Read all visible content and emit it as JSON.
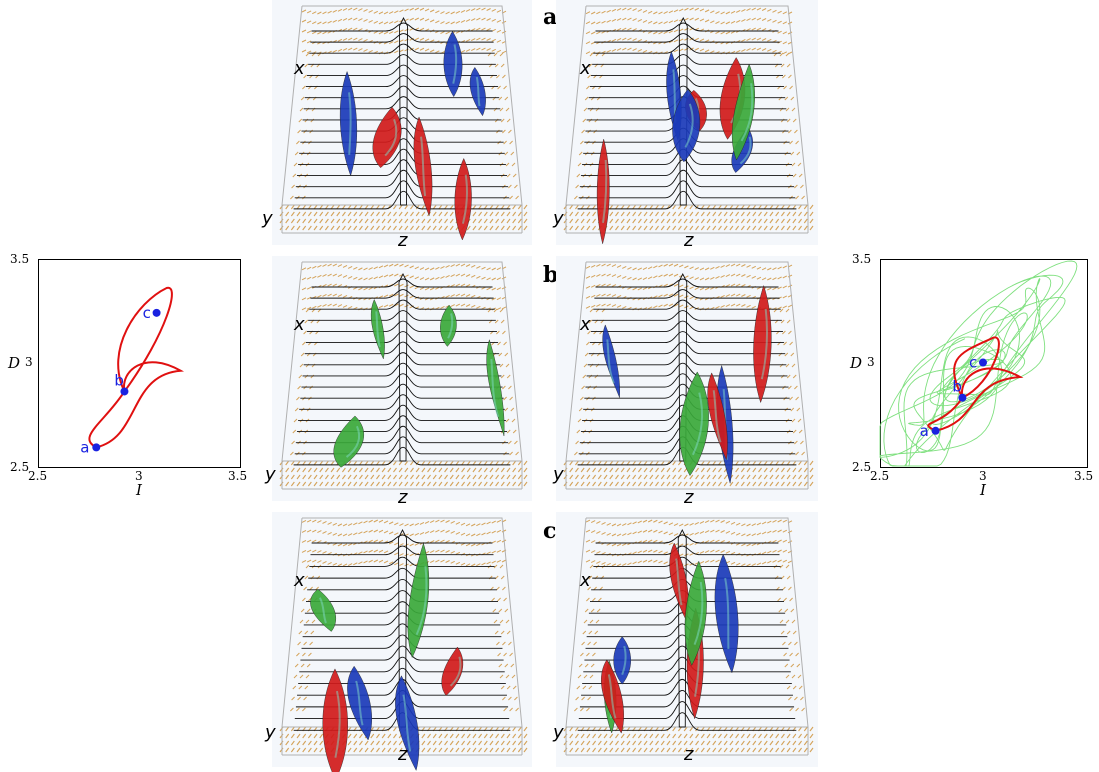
{
  "row_labels": [
    "a",
    "b",
    "c"
  ],
  "vis_axes": {
    "x": "x",
    "y": "y",
    "z": "z"
  },
  "left_plot": {
    "xlabel": "I",
    "ylabel": "D",
    "xticks": [
      "2.5",
      "3",
      "3.5"
    ],
    "yticks": [
      "2.5",
      "3",
      "3.5"
    ],
    "xlim": [
      2.5,
      3.5
    ],
    "ylim": [
      2.5,
      3.5
    ],
    "curve_color": "#e01010",
    "point_color": "#1a22e0",
    "points": [
      {
        "label": "a",
        "I": 2.79,
        "D": 2.59
      },
      {
        "label": "b",
        "I": 2.93,
        "D": 2.86
      },
      {
        "label": "c",
        "I": 3.09,
        "D": 3.24
      }
    ]
  },
  "right_plot": {
    "xlabel": "I",
    "ylabel": "D",
    "xticks": [
      "2.5",
      "3",
      "3.5"
    ],
    "yticks": [
      "2.5",
      "3",
      "3.5"
    ],
    "xlim": [
      2.5,
      3.5
    ],
    "ylim": [
      2.5,
      3.5
    ],
    "curve_color": "#e01010",
    "trajectory_color": "#7fe07f",
    "point_color": "#1a22e0",
    "points": [
      {
        "label": "a",
        "I": 2.77,
        "D": 2.67
      },
      {
        "label": "b",
        "I": 2.9,
        "D": 2.83
      },
      {
        "label": "c",
        "I": 3.0,
        "D": 3.0
      }
    ]
  },
  "colors": {
    "vortex_red": "#d01a1a",
    "vortex_blue": "#1a3ab8",
    "vortex_green": "#3aa83a",
    "arrows": "#d4a35a",
    "streamlines": "#111111",
    "box": "#b0b0b0"
  }
}
